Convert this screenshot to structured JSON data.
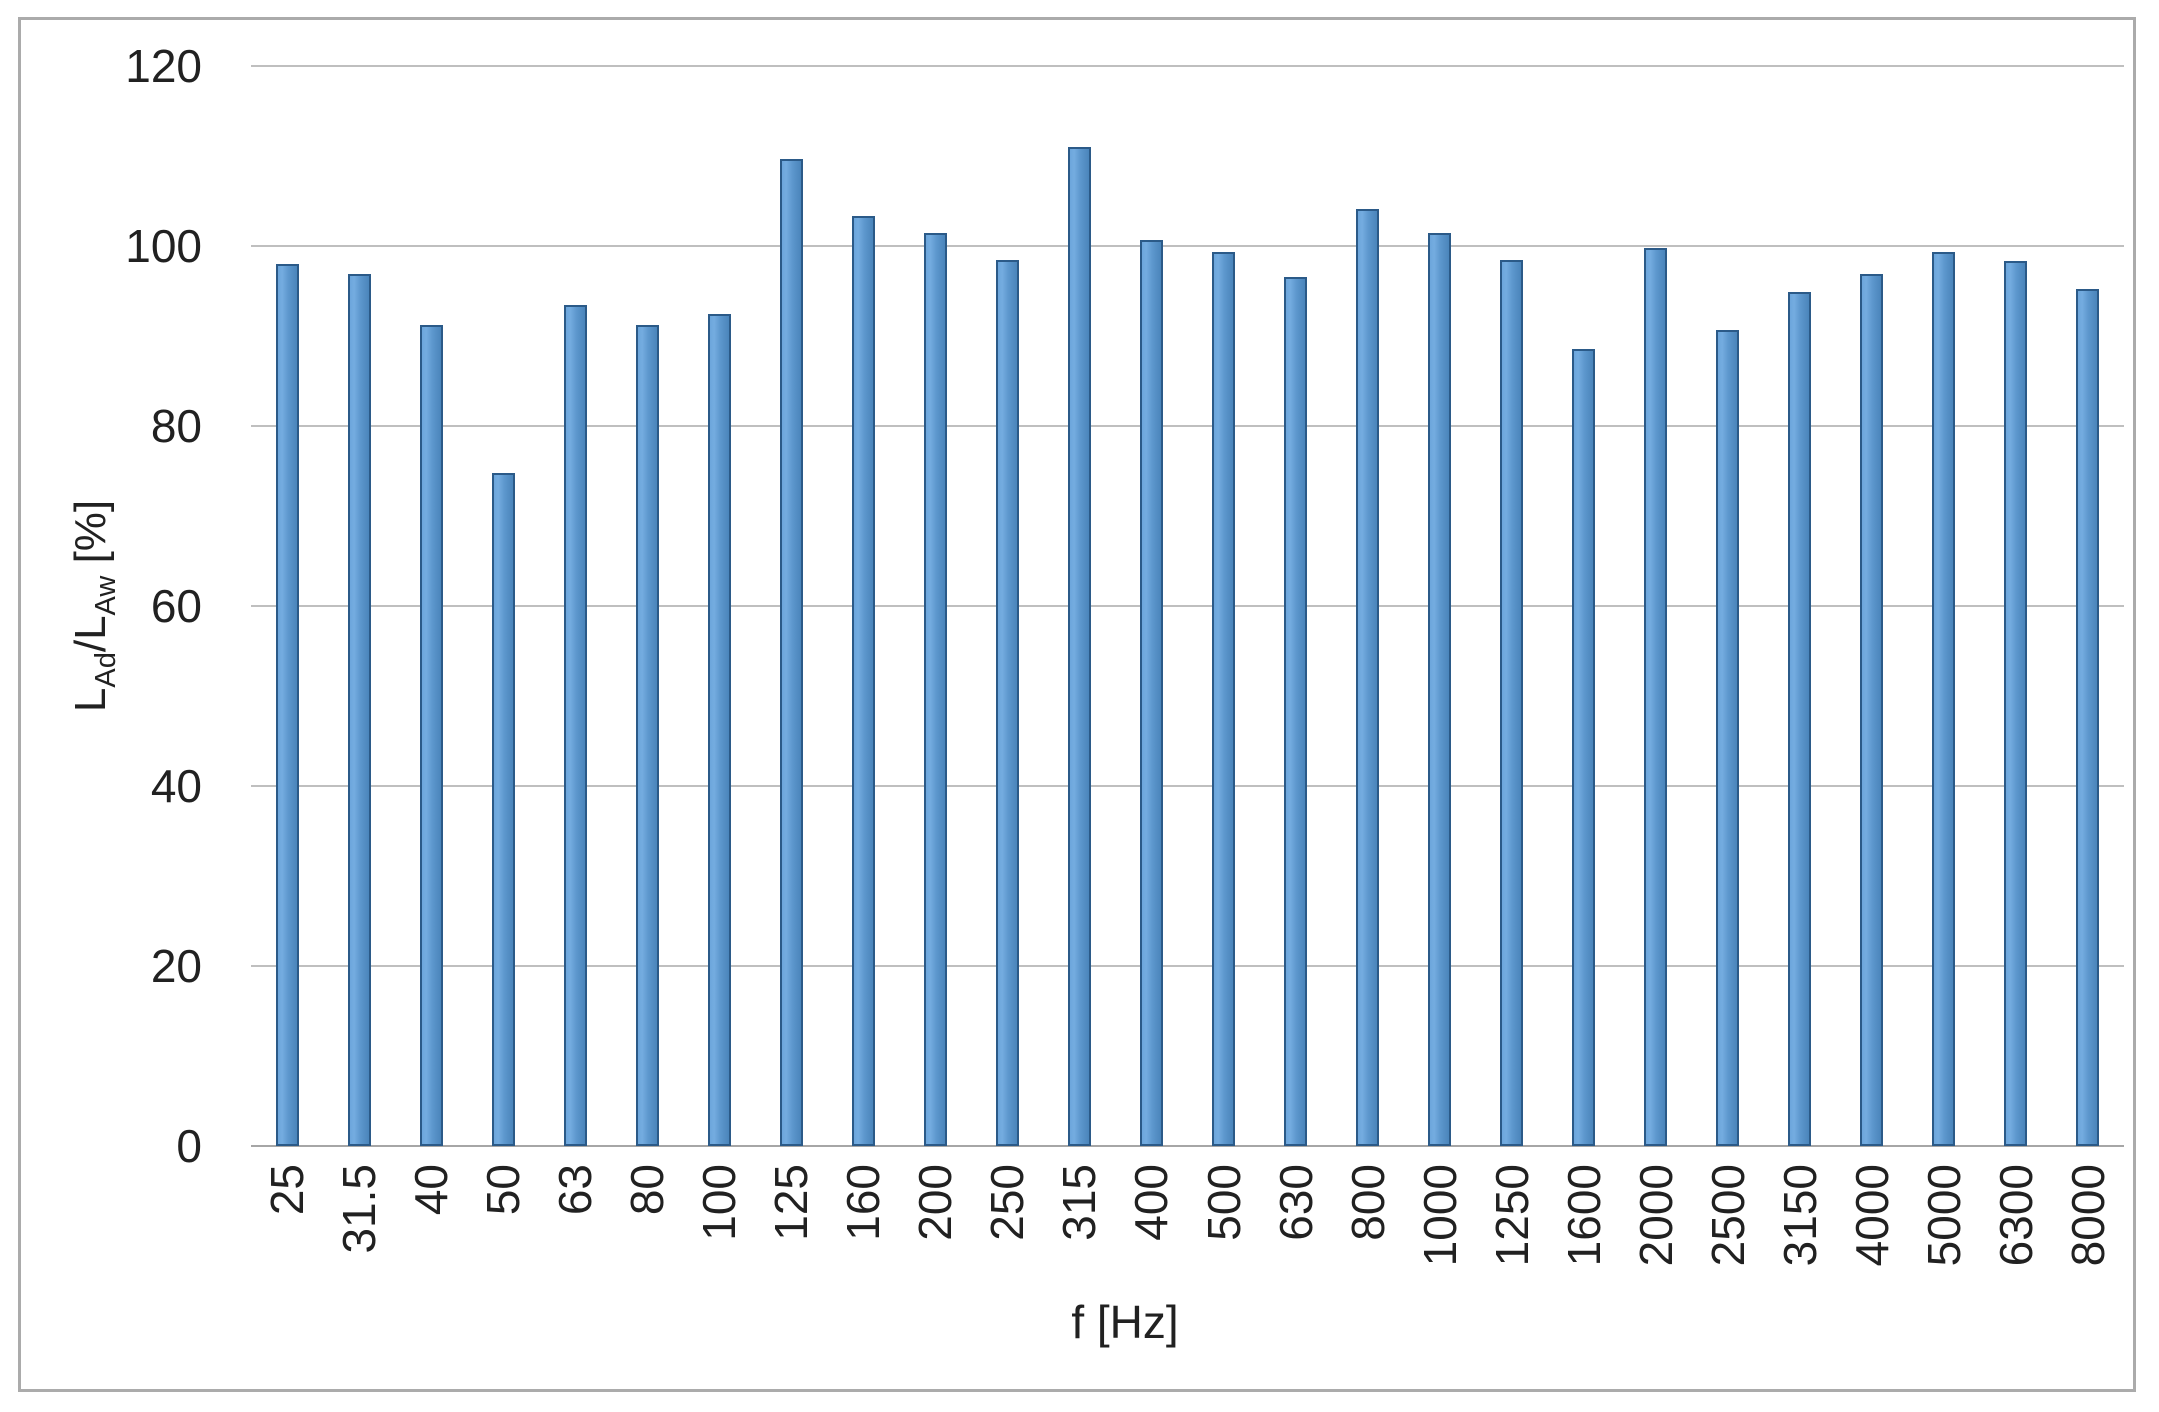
{
  "chart_data": {
    "type": "bar",
    "title": "",
    "xlabel": "f [Hz]",
    "ylabel": "LAd/LAw [%]",
    "ylabel_parts": [
      {
        "t": "L",
        "sub": false
      },
      {
        "t": "Ad",
        "sub": true
      },
      {
        "t": "/L",
        "sub": false
      },
      {
        "t": "Aw",
        "sub": true
      },
      {
        "t": " [%]",
        "sub": false
      }
    ],
    "ylim": [
      0,
      120
    ],
    "yticks": [
      0,
      20,
      40,
      60,
      80,
      100,
      120
    ],
    "grid": true,
    "legend_position": "none",
    "bar_fill_color": "#5D97CD",
    "bar_fill_highlight": "#74ACE0",
    "bar_border_color": "#2B5A88",
    "gridline_color": "#BFBFBF",
    "axis_line_color": "#A6A6A6",
    "frame_color": "#ABABAB",
    "text_color": "#212121",
    "categories": [
      "25",
      "31.5",
      "40",
      "50",
      "63",
      "80",
      "100",
      "125",
      "160",
      "200",
      "250",
      "315",
      "400",
      "500",
      "630",
      "800",
      "1000",
      "1250",
      "1600",
      "2000",
      "2500",
      "3150",
      "4000",
      "5000",
      "6300",
      "8000"
    ],
    "values": [
      98.0,
      96.9,
      91.2,
      74.8,
      93.4,
      91.2,
      92.5,
      109.7,
      103.3,
      101.4,
      98.5,
      111.0,
      100.7,
      99.3,
      96.6,
      104.1,
      101.4,
      98.5,
      88.6,
      99.8,
      90.7,
      94.9,
      96.9,
      99.3,
      98.3,
      95.2
    ]
  }
}
